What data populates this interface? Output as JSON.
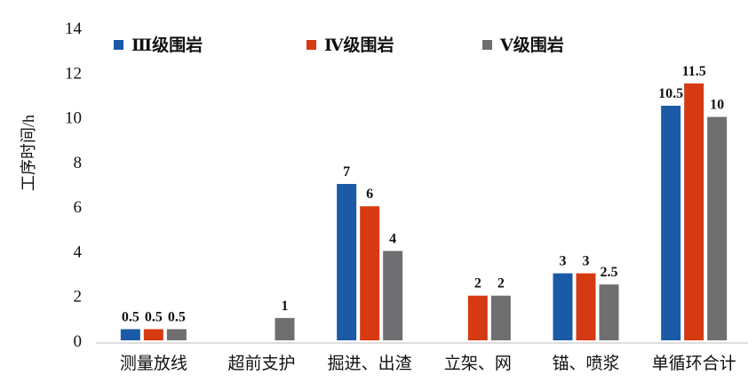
{
  "chart_data": {
    "type": "bar",
    "title": "",
    "xlabel": "",
    "ylabel": "工序时间/h",
    "ylim": [
      0,
      14
    ],
    "yticks": [
      0,
      2,
      4,
      6,
      8,
      10,
      12,
      14
    ],
    "grid": false,
    "legend": "top",
    "categories": [
      "测量放线",
      "超前支护",
      "掘进、出渣",
      "立架、网",
      "锚、喷浆",
      "单循环合计"
    ],
    "series": [
      {
        "name": "Ⅲ级围岩",
        "color": "#1a5aa6",
        "values": [
          0.5,
          null,
          7,
          null,
          3,
          10.5
        ]
      },
      {
        "name": "Ⅳ级围岩",
        "color": "#d63a12",
        "values": [
          0.5,
          null,
          6,
          2,
          3,
          11.5
        ]
      },
      {
        "name": "Ⅴ级围岩",
        "color": "#6f6f71",
        "values": [
          0.5,
          1,
          4,
          2,
          2.5,
          10
        ]
      }
    ]
  }
}
